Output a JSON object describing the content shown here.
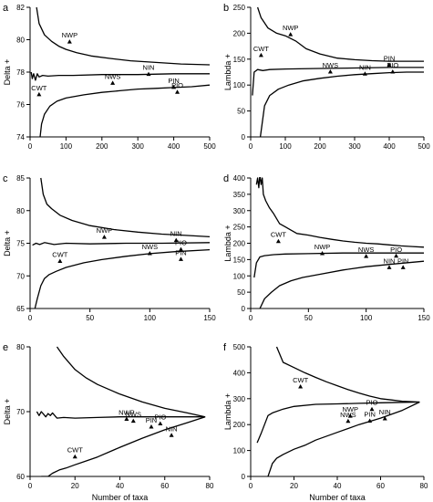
{
  "chart_data": [
    {
      "id": "a",
      "type": "line",
      "panel_letter": "a",
      "xlabel": "",
      "ylabel": "Delta +",
      "xlim": [
        0,
        500
      ],
      "ylim": [
        74,
        82
      ],
      "xticks": [
        0,
        100,
        200,
        300,
        400,
        500
      ],
      "yticks": [
        74,
        76,
        78,
        80,
        82
      ],
      "series": [
        {
          "x": [
            18,
            25,
            40,
            60,
            80,
            100,
            130,
            170,
            220,
            280,
            350,
            420,
            500
          ],
          "y": [
            82,
            81,
            80.3,
            79.9,
            79.6,
            79.4,
            79.2,
            79.0,
            78.85,
            78.7,
            78.6,
            78.5,
            78.45
          ]
        },
        {
          "x": [
            3,
            6,
            10,
            15,
            20,
            25,
            35,
            50,
            80,
            120,
            200,
            300,
            400,
            500
          ],
          "y": [
            78,
            77.6,
            77.9,
            77.5,
            77.9,
            77.7,
            77.8,
            77.75,
            77.8,
            77.8,
            77.85,
            77.85,
            77.9,
            77.9
          ]
        },
        {
          "x": [
            28,
            32,
            40,
            55,
            75,
            100,
            150,
            200,
            250,
            300,
            350,
            400,
            450,
            500
          ],
          "y": [
            74,
            74.8,
            75.4,
            75.9,
            76.2,
            76.4,
            76.6,
            76.75,
            76.85,
            76.95,
            77.0,
            77.05,
            77.1,
            77.2
          ]
        }
      ],
      "labels": [
        {
          "text": "NWP",
          "x": 110,
          "y": 79.85
        },
        {
          "text": "CWT",
          "x": 25,
          "y": 76.6
        },
        {
          "text": "NWS",
          "x": 230,
          "y": 77.3
        },
        {
          "text": "NIN",
          "x": 330,
          "y": 77.85
        },
        {
          "text": "PIN",
          "x": 400,
          "y": 77.05
        },
        {
          "text": "PIO",
          "x": 410,
          "y": 76.75
        }
      ]
    },
    {
      "id": "b",
      "type": "line",
      "panel_letter": "b",
      "xlabel": "",
      "ylabel": "Lambda +",
      "xlim": [
        0,
        500
      ],
      "ylim": [
        0,
        250
      ],
      "xticks": [
        0,
        100,
        200,
        300,
        400,
        500
      ],
      "yticks": [
        0,
        50,
        100,
        150,
        200,
        250
      ],
      "series": [
        {
          "x": [
            20,
            30,
            50,
            75,
            100,
            130,
            160,
            200,
            250,
            300,
            350,
            400,
            450,
            500
          ],
          "y": [
            250,
            230,
            210,
            200,
            195,
            185,
            170,
            160,
            152,
            149,
            147,
            146,
            146,
            146
          ]
        },
        {
          "x": [
            5,
            10,
            20,
            35,
            55,
            100,
            200,
            300,
            400,
            500
          ],
          "y": [
            80,
            125,
            130,
            128,
            130,
            131,
            132,
            133,
            134,
            134
          ]
        },
        {
          "x": [
            28,
            40,
            55,
            80,
            110,
            150,
            200,
            250,
            300,
            350,
            400,
            450,
            500
          ],
          "y": [
            0,
            60,
            80,
            92,
            100,
            108,
            113,
            117,
            120,
            122,
            124,
            125,
            125
          ]
        }
      ],
      "labels": [
        {
          "text": "NWP",
          "x": 115,
          "y": 197
        },
        {
          "text": "CWT",
          "x": 30,
          "y": 157
        },
        {
          "text": "NWS",
          "x": 230,
          "y": 125
        },
        {
          "text": "NIN",
          "x": 330,
          "y": 121
        },
        {
          "text": "PIN",
          "x": 400,
          "y": 138
        },
        {
          "text": "PIO",
          "x": 410,
          "y": 125
        }
      ]
    },
    {
      "id": "c",
      "type": "line",
      "panel_letter": "c",
      "xlabel": "",
      "ylabel": "Delta +",
      "xlim": [
        0,
        150
      ],
      "ylim": [
        65,
        85
      ],
      "xticks": [
        0,
        50,
        100,
        150
      ],
      "yticks": [
        65,
        70,
        75,
        80,
        85
      ],
      "series": [
        {
          "x": [
            9,
            11,
            14,
            18,
            25,
            35,
            50,
            70,
            90,
            110,
            130,
            150
          ],
          "y": [
            85,
            82.5,
            81,
            80.3,
            79.3,
            78.5,
            77.7,
            77.1,
            76.7,
            76.4,
            76.2,
            76.0
          ]
        },
        {
          "x": [
            2,
            5,
            8,
            12,
            20,
            30,
            50,
            80,
            110,
            150
          ],
          "y": [
            74.7,
            75,
            74.8,
            75.1,
            74.8,
            75.0,
            74.9,
            75.0,
            75.0,
            75.1
          ]
        },
        {
          "x": [
            4,
            6,
            9,
            12,
            16,
            22,
            30,
            45,
            60,
            80,
            100,
            120,
            150
          ],
          "y": [
            65,
            66.5,
            68.5,
            69.6,
            70.2,
            70.7,
            71.3,
            72.0,
            72.5,
            73.0,
            73.4,
            73.7,
            74.0
          ]
        }
      ],
      "labels": [
        {
          "text": "NWP",
          "x": 62,
          "y": 75.9
        },
        {
          "text": "CWT",
          "x": 25,
          "y": 72.2
        },
        {
          "text": "NWS",
          "x": 100,
          "y": 73.4
        },
        {
          "text": "NIN",
          "x": 122,
          "y": 75.4
        },
        {
          "text": "PIO",
          "x": 126,
          "y": 74.0
        },
        {
          "text": "PIN",
          "x": 126,
          "y": 72.5
        }
      ]
    },
    {
      "id": "d",
      "type": "line",
      "panel_letter": "d",
      "xlabel": "",
      "ylabel": "Lambda +",
      "xlim": [
        0,
        150
      ],
      "ylim": [
        0,
        400
      ],
      "xticks": [
        0,
        50,
        100,
        150
      ],
      "yticks": [
        0,
        50,
        100,
        150,
        200,
        250,
        300,
        350,
        400
      ],
      "series": [
        {
          "x": [
            5,
            6,
            7,
            8,
            9,
            10,
            11,
            13,
            16,
            20,
            25,
            30,
            35,
            40,
            50,
            60,
            70,
            80,
            90,
            100,
            110,
            120,
            130,
            140,
            150
          ],
          "y": [
            380,
            400,
            370,
            410,
            380,
            400,
            350,
            330,
            310,
            290,
            260,
            250,
            240,
            230,
            225,
            218,
            212,
            207,
            203,
            200,
            198,
            195,
            192,
            190,
            188
          ]
        },
        {
          "x": [
            3,
            5,
            8,
            12,
            20,
            30,
            50,
            80,
            110,
            150
          ],
          "y": [
            95,
            140,
            158,
            162,
            165,
            167,
            168,
            170,
            170,
            170
          ]
        },
        {
          "x": [
            8,
            12,
            18,
            25,
            35,
            45,
            60,
            80,
            100,
            120,
            150
          ],
          "y": [
            0,
            30,
            50,
            70,
            85,
            95,
            105,
            118,
            128,
            135,
            145
          ]
        }
      ],
      "labels": [
        {
          "text": "CWT",
          "x": 24,
          "y": 205
        },
        {
          "text": "NWP",
          "x": 62,
          "y": 168
        },
        {
          "text": "NWS",
          "x": 100,
          "y": 159
        },
        {
          "text": "NIN",
          "x": 120,
          "y": 125
        },
        {
          "text": "PIO",
          "x": 126,
          "y": 160
        },
        {
          "text": "PIN",
          "x": 132,
          "y": 125
        }
      ]
    },
    {
      "id": "e",
      "type": "line",
      "panel_letter": "e",
      "xlabel": "Number of taxa",
      "ylabel": "Delta +",
      "xlim": [
        0,
        80
      ],
      "ylim": [
        60,
        80
      ],
      "xticks": [
        0,
        20,
        40,
        60,
        80
      ],
      "yticks": [
        60,
        70,
        80
      ],
      "series": [
        {
          "x": [
            12,
            15,
            20,
            25,
            30,
            40,
            50,
            60,
            70,
            78
          ],
          "y": [
            80,
            78.5,
            76.5,
            75.2,
            74.2,
            72.7,
            71.5,
            70.5,
            69.8,
            69.2
          ]
        },
        {
          "x": [
            3,
            4,
            5,
            6,
            7,
            8,
            9,
            10,
            12,
            15,
            20,
            30,
            40,
            50,
            60,
            70,
            78
          ],
          "y": [
            70,
            69.4,
            70,
            69.6,
            69.2,
            69.7,
            69.4,
            69.8,
            69.0,
            69.1,
            69.0,
            69.1,
            69.2,
            69.2,
            69.2,
            69.2,
            69.2
          ]
        },
        {
          "x": [
            5,
            8,
            10,
            13,
            16,
            20,
            25,
            30,
            40,
            50,
            60,
            70,
            78
          ],
          "y": [
            60,
            60,
            60.5,
            61.0,
            61.3,
            61.8,
            62.4,
            63.0,
            64.5,
            65.9,
            67.2,
            68.3,
            69.2
          ]
        }
      ],
      "labels": [
        {
          "text": "NWP",
          "x": 43,
          "y": 68.8
        },
        {
          "text": "NWS",
          "x": 46,
          "y": 68.5
        },
        {
          "text": "PIO",
          "x": 58,
          "y": 68.1
        },
        {
          "text": "PIN",
          "x": 54,
          "y": 67.6
        },
        {
          "text": "NIN",
          "x": 63,
          "y": 66.3
        },
        {
          "text": "CWT",
          "x": 20,
          "y": 63.0
        }
      ]
    },
    {
      "id": "f",
      "type": "line",
      "panel_letter": "f",
      "xlabel": "Number of taxa",
      "ylabel": "Lambda +",
      "xlim": [
        0,
        80
      ],
      "ylim": [
        0,
        500
      ],
      "xticks": [
        0,
        20,
        40,
        60,
        80
      ],
      "yticks": [
        0,
        100,
        200,
        300,
        400,
        500
      ],
      "series": [
        {
          "x": [
            12,
            13,
            15,
            20,
            25,
            30,
            35,
            40,
            45,
            50,
            55,
            60,
            65,
            70,
            75,
            78
          ],
          "y": [
            500,
            480,
            440,
            420,
            400,
            382,
            365,
            350,
            335,
            322,
            310,
            300,
            295,
            290,
            288,
            287
          ]
        },
        {
          "x": [
            3,
            5,
            8,
            10,
            15,
            20,
            30,
            40,
            50,
            60,
            70,
            78
          ],
          "y": [
            130,
            170,
            235,
            245,
            260,
            270,
            278,
            280,
            282,
            284,
            286,
            287
          ]
        },
        {
          "x": [
            8,
            10,
            12,
            15,
            20,
            25,
            30,
            40,
            50,
            60,
            70,
            78
          ],
          "y": [
            0,
            50,
            70,
            85,
            105,
            120,
            140,
            170,
            200,
            225,
            255,
            287
          ]
        }
      ],
      "labels": [
        {
          "text": "CWT",
          "x": 23,
          "y": 345
        },
        {
          "text": "NWP",
          "x": 46,
          "y": 232
        },
        {
          "text": "PIO",
          "x": 56,
          "y": 258
        },
        {
          "text": "NWS",
          "x": 45,
          "y": 212
        },
        {
          "text": "PIN",
          "x": 55,
          "y": 213
        },
        {
          "text": "NIN",
          "x": 62,
          "y": 222
        }
      ]
    }
  ]
}
